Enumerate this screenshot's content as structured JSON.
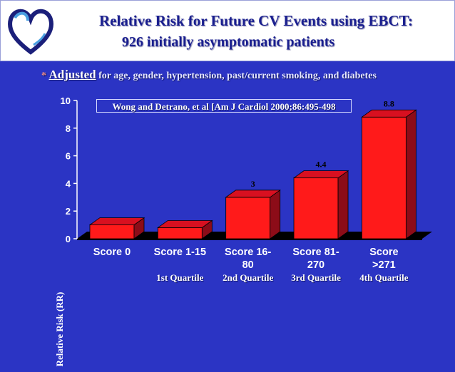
{
  "header": {
    "title_line1": "Relative Risk for Future CV Events using EBCT:",
    "title_line2": "926 initially asymptomatic patients"
  },
  "note": {
    "star": "*",
    "keyword": "Adjusted",
    "text": "for age, gender, hypertension, past/current smoking, and diabetes"
  },
  "citation": "Wong and Detrano, et al [Am J Cardiol 2000;86:495-498",
  "colors": {
    "background": "#2b34c4",
    "bar_front": "#ff1a1a",
    "bar_side": "#8c0c18",
    "bar_top": "#d81020"
  },
  "chart_data": {
    "type": "bar",
    "categories": [
      "Score 0",
      "Score 1-15",
      "Score 16-80",
      "Score 81-270",
      "Score >271"
    ],
    "category_lines": [
      [
        "Score 0"
      ],
      [
        "Score 1-15"
      ],
      [
        "Score 16-",
        "80"
      ],
      [
        "Score 81-",
        "270"
      ],
      [
        "Score",
        ">271"
      ]
    ],
    "values": [
      1.0,
      0.8,
      3.0,
      4.4,
      8.8
    ],
    "data_labels": [
      "",
      "",
      "3",
      "4.4",
      "8.8"
    ],
    "quartiles": [
      "",
      "1st Quartile",
      "2nd Quartile",
      "3rd Quartile",
      "4th Quartile"
    ],
    "ylabel": "Relative Risk (RR)",
    "ylim": [
      0,
      10
    ],
    "yticks": [
      0,
      2,
      4,
      6,
      8,
      10
    ],
    "grid": false,
    "three_d": true
  }
}
